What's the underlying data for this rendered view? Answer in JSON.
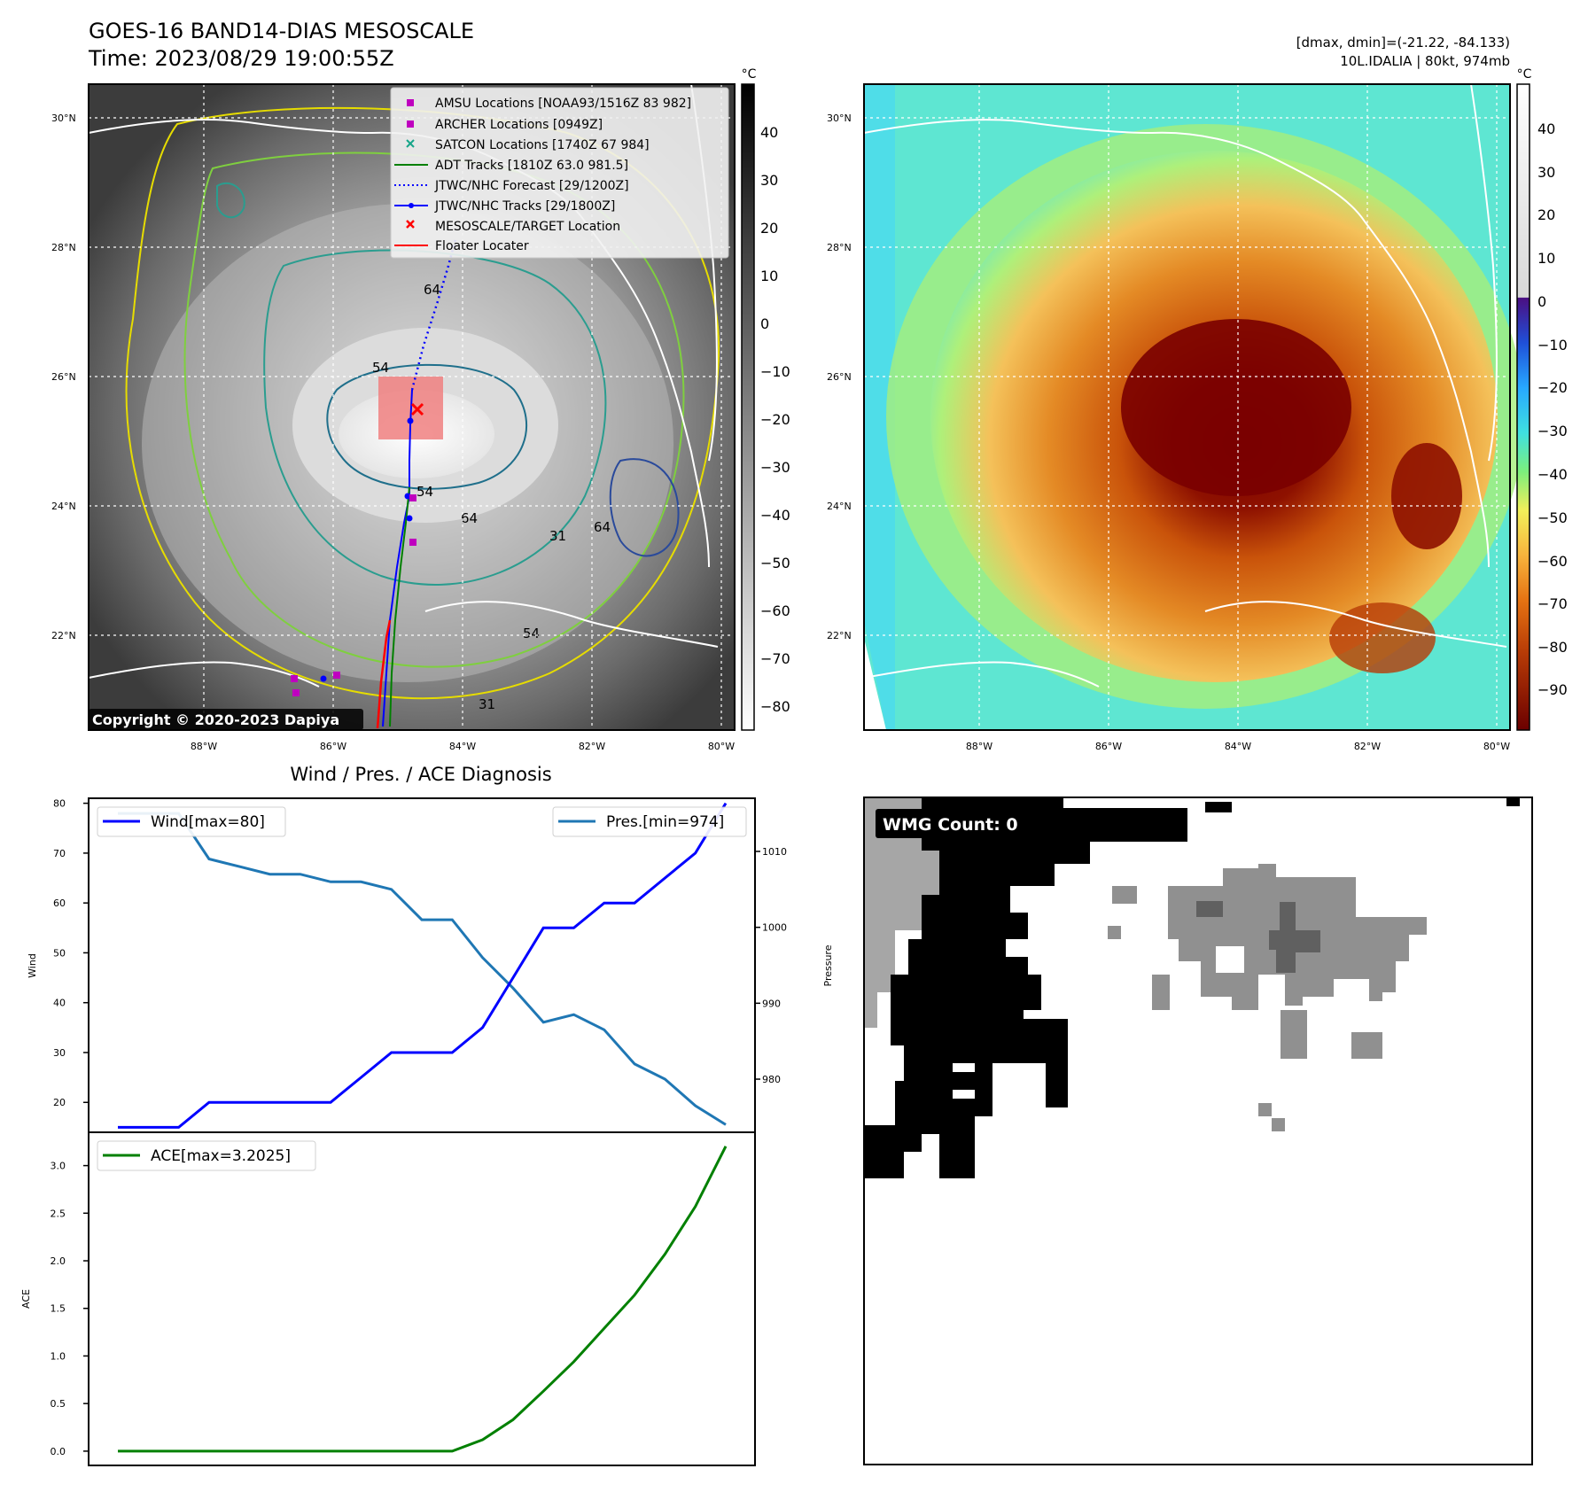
{
  "header": {
    "title": "GOES-16 BAND14-DIAS MESOSCALE",
    "time": "Time: 2023/08/29 19:00:55Z",
    "dminmax": "[dmax, dmin]=(-21.22, -84.133)",
    "storm": "10L.IDALIA | 80kt, 974mb"
  },
  "map": {
    "lat_labels": [
      "30°N",
      "28°N",
      "26°N",
      "24°N",
      "22°N"
    ],
    "lon_labels": [
      "88°W",
      "86°W",
      "84°W",
      "82°W",
      "80°W"
    ],
    "copyright": "Copyright © 2020-2023 Dapiya",
    "legend": [
      {
        "label": "AMSU Locations [NOAA93/1516Z 83 982]",
        "color": "#bf00bf",
        "marker": "square"
      },
      {
        "label": "ARCHER Locations [0949Z]",
        "color": "#bf00bf",
        "marker": "square"
      },
      {
        "label": "SATCON Locations [1740Z 67 984]",
        "color": "#17a589",
        "marker": "x"
      },
      {
        "label": "ADT Tracks [1810Z 63.0 981.5]",
        "color": "#008000",
        "marker": "line"
      },
      {
        "label": "JTWC/NHC Forecast [29/1200Z]",
        "color": "#0000ff",
        "marker": "dotted"
      },
      {
        "label": "JTWC/NHC Tracks [29/1800Z]",
        "color": "#0000ff",
        "marker": "line-dot"
      },
      {
        "label": "MESOSCALE/TARGET Location",
        "color": "#ff0000",
        "marker": "x"
      },
      {
        "label": "Floater Locater",
        "color": "#ff0000",
        "marker": "line"
      }
    ],
    "contour_labels": [
      "64",
      "54",
      "54",
      "64",
      "31",
      "64",
      "54",
      "31"
    ]
  },
  "colorbars": {
    "unit": "°C",
    "gray_ticks": [
      "40",
      "30",
      "20",
      "10",
      "0",
      "−10",
      "−20",
      "−30",
      "−40",
      "−50",
      "−60",
      "−70",
      "−80"
    ],
    "color_ticks": [
      "40",
      "30",
      "20",
      "10",
      "0",
      "−10",
      "−20",
      "−30",
      "−40",
      "−50",
      "−60",
      "−70",
      "−80",
      "−90"
    ]
  },
  "wmg": {
    "label": "WMG Count: 0"
  },
  "chart_data": [
    {
      "type": "line",
      "title": "Wind / Pres. / ACE Diagnosis",
      "ylabel": "Wind",
      "y2label": "Pressure",
      "ylim": [
        14,
        81
      ],
      "y2lim": [
        973,
        1017
      ],
      "yticks": [
        "80",
        "70",
        "60",
        "50",
        "40",
        "30",
        "20"
      ],
      "y2ticks": [
        "1010",
        "1000",
        "990",
        "980"
      ],
      "series": [
        {
          "name": "Wind[max=80]",
          "axis": "left",
          "color": "#0000ff",
          "values": [
            15,
            15,
            15,
            20,
            20,
            20,
            20,
            20,
            25,
            30,
            30,
            30,
            35,
            45,
            55,
            55,
            60,
            60,
            65,
            70,
            80
          ]
        },
        {
          "name": "Pres.[min=974]",
          "axis": "right",
          "color": "#1f77b4",
          "values": [
            1015,
            1015,
            1015,
            1009,
            1008,
            1007,
            1007,
            1006,
            1006,
            1005,
            1001,
            1001,
            996,
            992,
            987.5,
            988.5,
            986.5,
            982,
            980,
            976.5,
            974
          ]
        }
      ]
    },
    {
      "type": "line",
      "ylabel": "ACE",
      "ylim": [
        -0.15,
        3.35
      ],
      "yticks": [
        "3.0",
        "2.5",
        "2.0",
        "1.5",
        "1.0",
        "0.5",
        "0.0"
      ],
      "series": [
        {
          "name": "ACE[max=3.2025]",
          "color": "#008000",
          "values": [
            0,
            0,
            0,
            0,
            0,
            0,
            0,
            0,
            0,
            0,
            0,
            0,
            0.12,
            0.33,
            0.63,
            0.94,
            1.29,
            1.64,
            2.07,
            2.57,
            3.2025
          ]
        }
      ]
    }
  ]
}
